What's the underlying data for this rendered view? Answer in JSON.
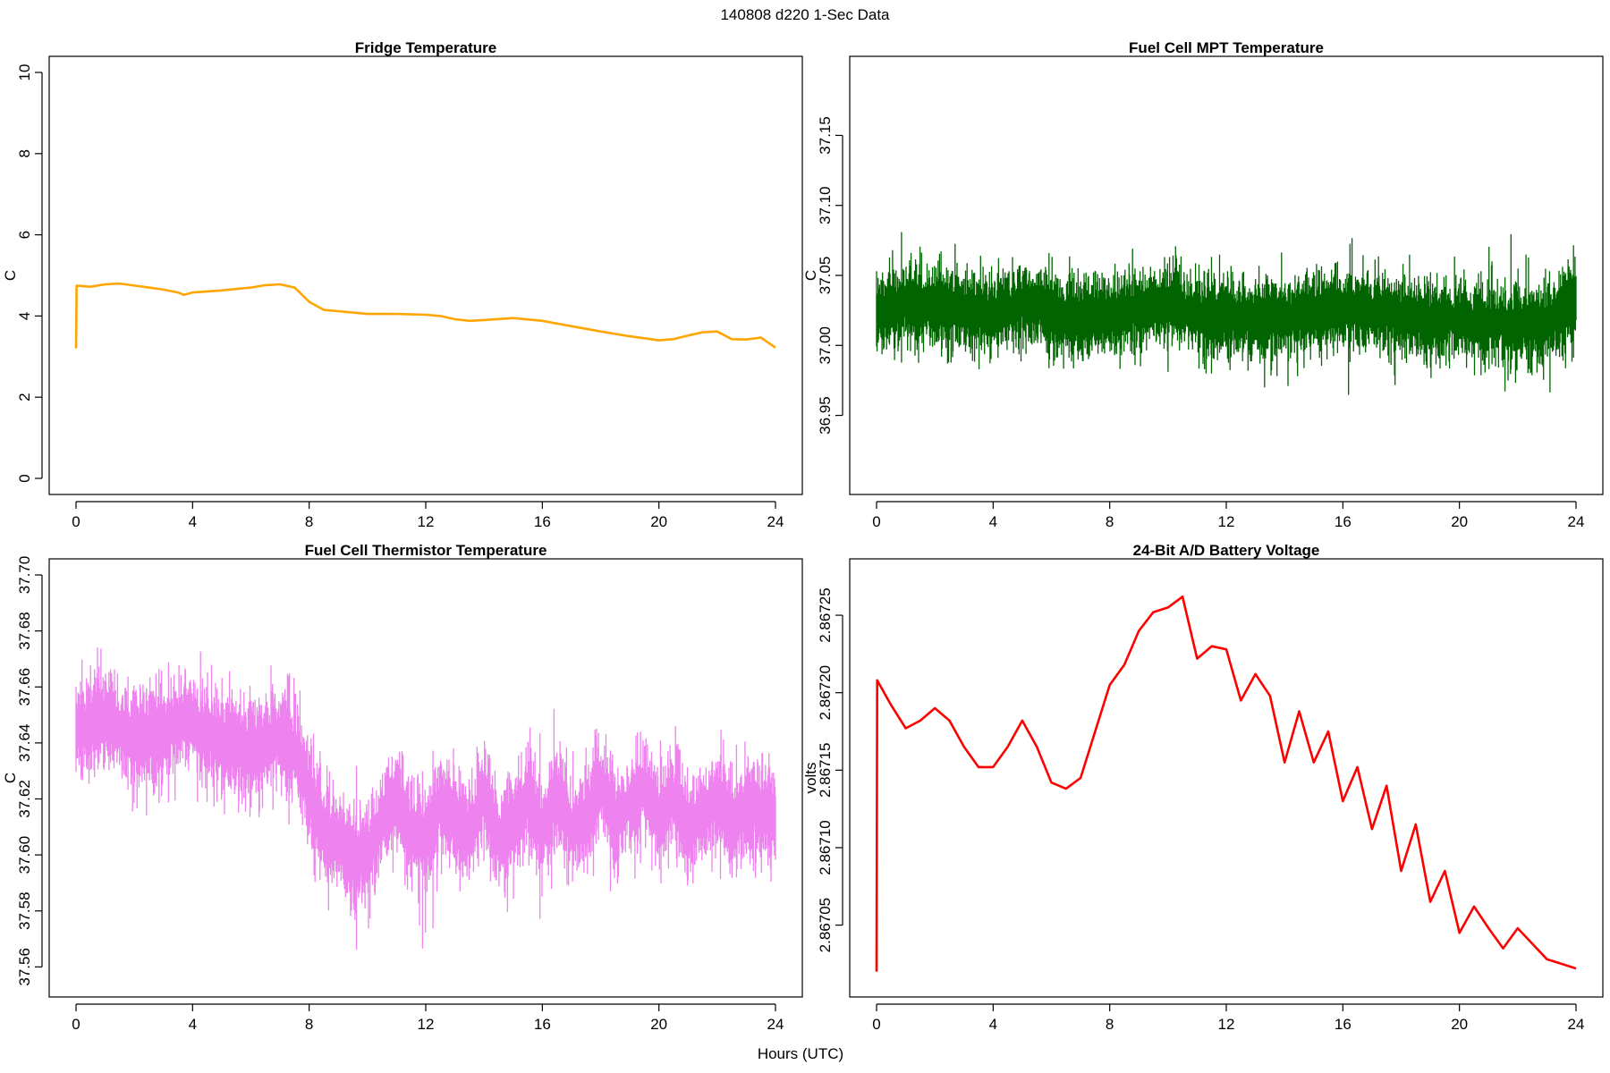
{
  "figure": {
    "title": "140808   d220   1-Sec Data",
    "shared_xlabel": "Hours (UTC)"
  },
  "chart_data": [
    {
      "type": "line",
      "title": "Fridge Temperature",
      "xlabel": "",
      "ylabel": "C",
      "xlim": [
        0,
        24
      ],
      "ylim": [
        0,
        10
      ],
      "xticks": [
        0,
        4,
        8,
        12,
        16,
        20,
        24
      ],
      "xtick_labels": [
        "0",
        "4",
        "8",
        "12",
        "16",
        "20",
        "24"
      ],
      "yticks": [
        0,
        2,
        4,
        6,
        8,
        10
      ],
      "ytick_labels": [
        "0",
        "2",
        "4",
        "6",
        "8",
        "10"
      ],
      "color": "#FFA500",
      "noise": 0,
      "series": [
        {
          "x": [
            0,
            0.02,
            0.5,
            1.0,
            1.5,
            2.0,
            2.5,
            3.0,
            3.5,
            3.7,
            4.0,
            5.0,
            6.0,
            6.5,
            7.0,
            7.5,
            8.0,
            8.5,
            9.0,
            10.0,
            11.0,
            12.0,
            12.5,
            13.0,
            13.5,
            14.0,
            15.0,
            16.0,
            17.0,
            18.0,
            19.0,
            20.0,
            20.5,
            21.0,
            21.5,
            22.0,
            22.5,
            23.0,
            23.5,
            24.0
          ],
          "y": [
            3.2,
            4.75,
            4.72,
            4.78,
            4.8,
            4.75,
            4.7,
            4.65,
            4.58,
            4.52,
            4.58,
            4.63,
            4.7,
            4.76,
            4.78,
            4.7,
            4.35,
            4.15,
            4.12,
            4.05,
            4.05,
            4.03,
            4.0,
            3.92,
            3.88,
            3.9,
            3.95,
            3.88,
            3.75,
            3.62,
            3.5,
            3.4,
            3.43,
            3.52,
            3.6,
            3.62,
            3.43,
            3.42,
            3.47,
            3.22
          ]
        }
      ]
    },
    {
      "type": "line",
      "title": "Fuel Cell MPT Temperature",
      "xlabel": "",
      "ylabel": "C",
      "xlim": [
        0,
        24
      ],
      "ylim": [
        36.905,
        37.195
      ],
      "xticks": [
        0,
        4,
        8,
        12,
        16,
        20,
        24
      ],
      "xtick_labels": [
        "0",
        "4",
        "8",
        "12",
        "16",
        "20",
        "24"
      ],
      "yticks": [
        36.95,
        37.0,
        37.05,
        37.1,
        37.15
      ],
      "ytick_labels": [
        "36.95",
        "37.00",
        "37.05",
        "37.10",
        "37.15"
      ],
      "color": "#006400",
      "noise": 0.033,
      "series": [
        {
          "x": [
            0,
            1,
            2,
            3,
            4,
            5,
            6,
            7,
            8,
            9,
            10,
            11,
            12,
            13,
            14,
            15,
            16,
            17,
            18,
            19,
            20,
            21,
            22,
            23,
            24
          ],
          "y": [
            37.022,
            37.03,
            37.028,
            37.025,
            37.022,
            37.03,
            37.025,
            37.02,
            37.022,
            37.025,
            37.03,
            37.022,
            37.02,
            37.018,
            37.02,
            37.022,
            37.025,
            37.025,
            37.02,
            37.018,
            37.018,
            37.015,
            37.015,
            37.015,
            37.035
          ]
        }
      ]
    },
    {
      "type": "line",
      "title": "Fuel Cell Thermistor Temperature",
      "xlabel": "",
      "ylabel": "C",
      "xlim": [
        0,
        24
      ],
      "ylim": [
        37.555,
        37.7
      ],
      "xticks": [
        0,
        4,
        8,
        12,
        16,
        20,
        24
      ],
      "xtick_labels": [
        "0",
        "4",
        "8",
        "12",
        "16",
        "20",
        "24"
      ],
      "yticks": [
        37.56,
        37.58,
        37.6,
        37.62,
        37.64,
        37.66,
        37.68,
        37.7
      ],
      "ytick_labels": [
        "37.56",
        "37.58",
        "37.60",
        "37.62",
        "37.64",
        "37.66",
        "37.68",
        "37.70"
      ],
      "color": "#EE82EE",
      "noise": 0.021,
      "series": [
        {
          "x": [
            0,
            1,
            2,
            3,
            4,
            5,
            6,
            7,
            7.5,
            8,
            8.5,
            9,
            9.5,
            10,
            10.5,
            11,
            11.5,
            12,
            12.5,
            13,
            13.5,
            14,
            14.5,
            15,
            15.5,
            16,
            16.5,
            17,
            17.5,
            18,
            18.5,
            19,
            19.5,
            20,
            20.5,
            21,
            21.5,
            22,
            22.5,
            23,
            23.5,
            24
          ],
          "y": [
            37.645,
            37.648,
            37.642,
            37.645,
            37.648,
            37.64,
            37.637,
            37.642,
            37.638,
            37.622,
            37.61,
            37.605,
            37.6,
            37.6,
            37.612,
            37.62,
            37.608,
            37.606,
            37.618,
            37.612,
            37.608,
            37.622,
            37.605,
            37.612,
            37.62,
            37.608,
            37.622,
            37.61,
            37.612,
            37.625,
            37.612,
            37.618,
            37.625,
            37.612,
            37.62,
            37.608,
            37.615,
            37.62,
            37.61,
            37.618,
            37.615,
            37.615
          ]
        }
      ]
    },
    {
      "type": "line",
      "title": "24-Bit A/D Battery Voltage",
      "xlabel": "",
      "ylabel": "volts",
      "xlim": [
        0,
        24
      ],
      "ylim": [
        2.867014,
        2.867276
      ],
      "xticks": [
        0,
        4,
        8,
        12,
        16,
        20,
        24
      ],
      "xtick_labels": [
        "0",
        "4",
        "8",
        "12",
        "16",
        "20",
        "24"
      ],
      "yticks": [
        2.86705,
        2.8671,
        2.86715,
        2.8672,
        2.86725
      ],
      "ytick_labels": [
        "2.86705",
        "2.86710",
        "2.86715",
        "2.86720",
        "2.86725"
      ],
      "color": "#FF0000",
      "noise": 0,
      "series": [
        {
          "x": [
            0,
            0.02,
            0.5,
            1.0,
            1.5,
            2.0,
            2.5,
            3.0,
            3.5,
            4.0,
            4.5,
            5.0,
            5.5,
            6.0,
            6.5,
            7.0,
            7.5,
            8.0,
            8.5,
            9.0,
            9.5,
            10.0,
            10.5,
            11.0,
            11.5,
            12.0,
            12.5,
            13.0,
            13.5,
            14.0,
            14.5,
            15.0,
            15.5,
            16.0,
            16.5,
            17.0,
            17.5,
            18.0,
            18.5,
            19.0,
            19.5,
            20.0,
            20.5,
            21.0,
            21.5,
            22.0,
            22.5,
            23.0,
            23.5,
            24.0
          ],
          "y": [
            2.86702,
            2.867208,
            2.867192,
            2.867177,
            2.867182,
            2.86719,
            2.867182,
            2.867165,
            2.867152,
            2.867152,
            2.867165,
            2.867182,
            2.867165,
            2.867142,
            2.867138,
            2.867145,
            2.867175,
            2.867205,
            2.867218,
            2.86724,
            2.867252,
            2.867255,
            2.867262,
            2.867222,
            2.86723,
            2.867228,
            2.867195,
            2.867212,
            2.867198,
            2.867155,
            2.867188,
            2.867155,
            2.867175,
            2.86713,
            2.867152,
            2.867112,
            2.86714,
            2.867085,
            2.867115,
            2.867065,
            2.867085,
            2.867045,
            2.867062,
            2.867048,
            2.867035,
            2.867048,
            2.867038,
            2.867028,
            2.867025,
            2.867022
          ]
        }
      ]
    }
  ]
}
